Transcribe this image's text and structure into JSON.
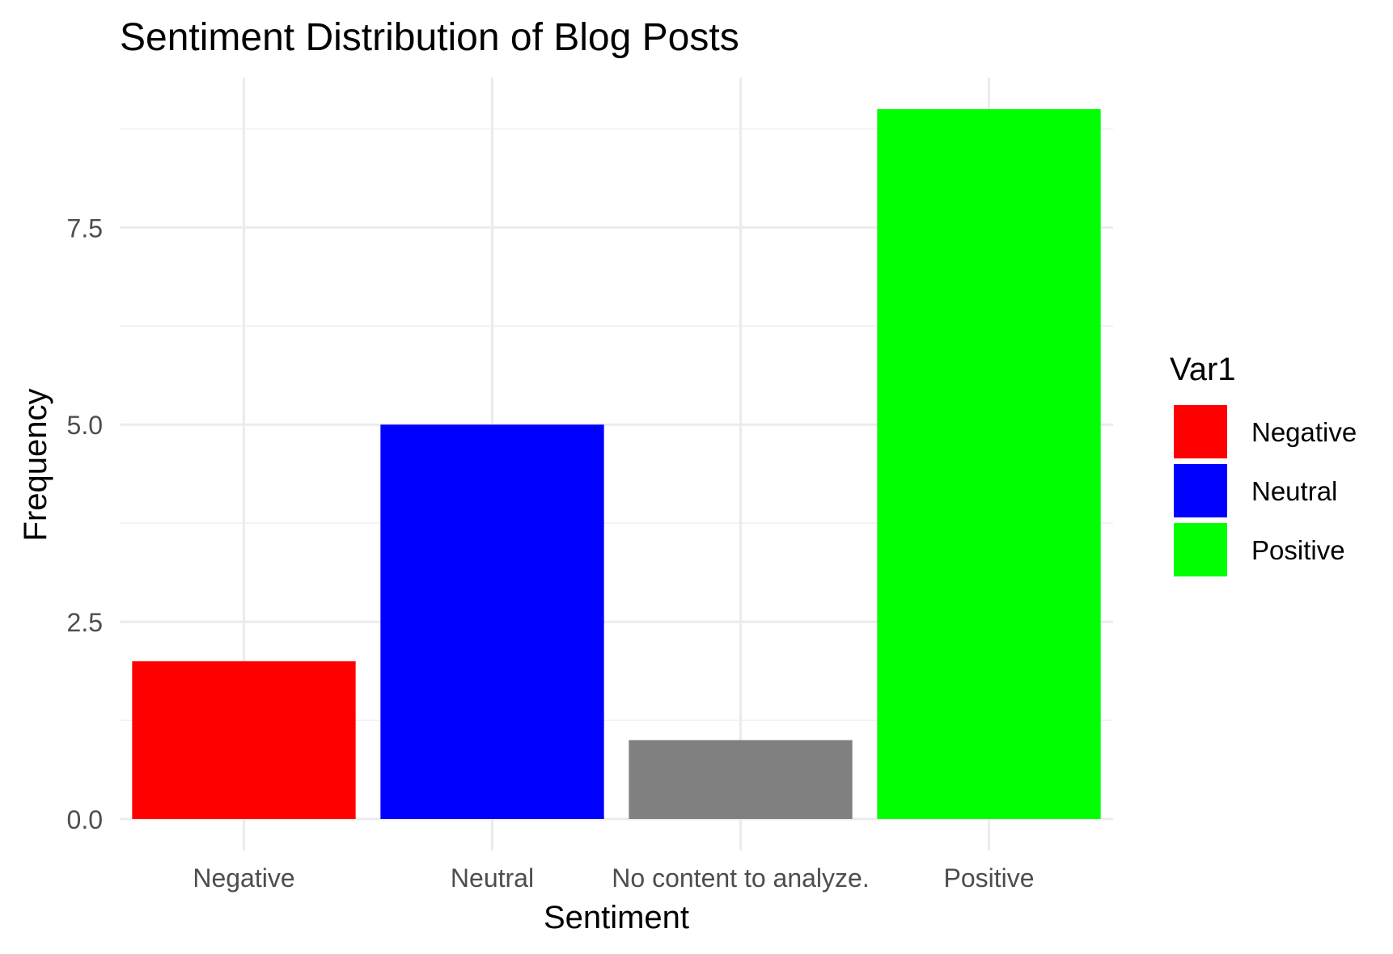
{
  "chart_data": {
    "type": "bar",
    "title": "Sentiment Distribution of Blog Posts",
    "xlabel": "Sentiment",
    "ylabel": "Frequency",
    "categories": [
      "Negative",
      "Neutral",
      "No content to analyze.",
      "Positive"
    ],
    "values": [
      2,
      5,
      1,
      9
    ],
    "bar_colors": [
      "#ff0000",
      "#0000ff",
      "#808080",
      "#00ff00"
    ],
    "ylim": [
      -0.4,
      9.4
    ],
    "yticks": [
      0.0,
      2.5,
      5.0,
      7.5
    ],
    "ytick_labels": [
      "0.0",
      "2.5",
      "5.0",
      "7.5"
    ],
    "minor_yticks": [
      1.25,
      3.75,
      6.25,
      8.75
    ],
    "grid": true,
    "legend": {
      "title": "Var1",
      "placement": "right",
      "entries": [
        {
          "label": "Negative",
          "color": "#ff0000"
        },
        {
          "label": "Neutral",
          "color": "#0000ff"
        },
        {
          "label": "Positive",
          "color": "#00ff00"
        }
      ]
    },
    "colors": {
      "grid_major": "#ebebeb",
      "grid_minor": "#f3f3f3",
      "tick_text": "#4d4d4d",
      "text": "#000000"
    }
  }
}
